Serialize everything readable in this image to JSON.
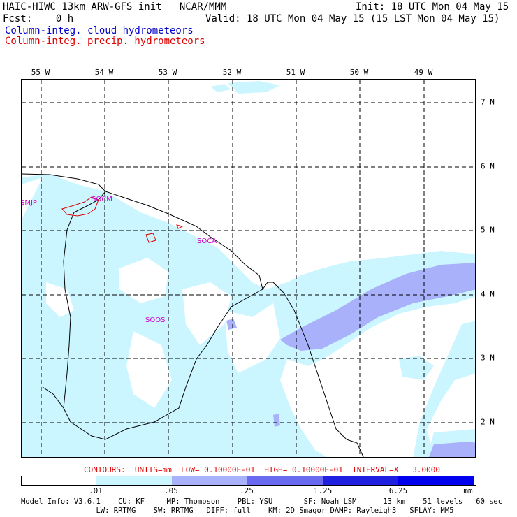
{
  "header": {
    "title_left": "HAIC-HIWC 13km ARW-GFS init   NCAR/MMM",
    "init": "Init: 18 UTC Mon 04 May 15",
    "fcst": "Fcst:    0 h",
    "valid": "Valid: 18 UTC Mon 04 May 15 (15 LST Mon 04 May 15)",
    "field1": "Column-integ. cloud hydrometeors",
    "field2": "Column-integ. precip. hydrometeors",
    "field1_color": "#0000cc",
    "field2_color": "#dd0000"
  },
  "map": {
    "lon_labels": [
      "55 W",
      "54 W",
      "53 W",
      "52 W",
      "51 W",
      "50 W",
      "49 W"
    ],
    "lat_labels": [
      "7 N",
      "6 N",
      "5 N",
      "4 N",
      "3 N",
      "2 N"
    ],
    "stations": [
      "SMJP",
      "SOCM",
      "SOCA",
      "SOOS"
    ]
  },
  "contours_line": "CONTOURS:  UNITS=mm  LOW= 0.10000E-01  HIGH= 0.10000E-01  INTERVAL=X   3.0000",
  "colorbar": {
    "labels": [
      ".01",
      ".05",
      ".25",
      "1.25",
      "6.25",
      "mm"
    ],
    "colors": [
      "#ffffff",
      "#ccf6ff",
      "#a9b1fa",
      "#6a6af0",
      "#2020e0",
      "#0000ee"
    ]
  },
  "footer": {
    "line1": "Model Info: V3.6.1    CU: KF     MP: Thompson    PBL: YSU       SF: Noah LSM      13 km    51 levels   60 sec",
    "line2": "                 LW: RRTMG    SW: RRTMG   DIFF: full    KM: 2D Smagor DAMP: Rayleigh3   SFLAY: MM5"
  }
}
